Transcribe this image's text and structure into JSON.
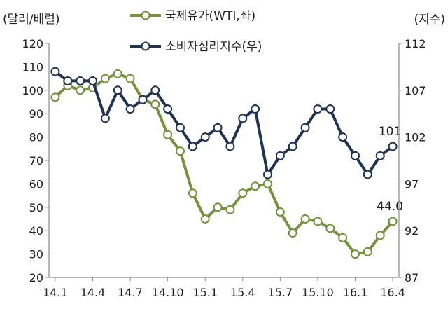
{
  "chart_data": {
    "type": "line",
    "left_axis_label": "(달러/배럴)",
    "right_axis_label": "(지수)",
    "x_tick_labels": [
      "14.1",
      "14.4",
      "14.7",
      "14.10",
      "15.1",
      "15.4",
      "15.7",
      "15.10",
      "16.1",
      "16.4"
    ],
    "y_left": {
      "min": 20,
      "max": 120,
      "ticks": [
        20,
        30,
        40,
        50,
        60,
        70,
        80,
        90,
        100,
        110,
        120
      ]
    },
    "y_right": {
      "min": 87,
      "max": 112,
      "ticks": [
        87,
        92,
        97,
        102,
        107,
        112
      ]
    },
    "series": [
      {
        "name": "국제유가(WTI,좌)",
        "axis": "left",
        "color": "#76923c",
        "values": [
          97,
          102,
          100,
          101,
          105,
          107,
          105,
          96,
          94,
          81,
          74,
          56,
          45,
          50,
          49,
          56,
          59,
          60,
          48,
          39,
          45,
          44,
          41,
          37,
          30,
          31,
          38,
          44
        ],
        "end_label": "44.0"
      },
      {
        "name": "소비자심리지수(우)",
        "axis": "right",
        "color": "#1f3352",
        "values": [
          109,
          108,
          108,
          108,
          104,
          107,
          105,
          106,
          107,
          105,
          103,
          101,
          102,
          103,
          101,
          104,
          105,
          98,
          100,
          101,
          103,
          105,
          105,
          102,
          100,
          98,
          100,
          101
        ],
        "end_label": "101"
      }
    ]
  },
  "colors": {
    "grid_axis": "#8c8c8c"
  }
}
